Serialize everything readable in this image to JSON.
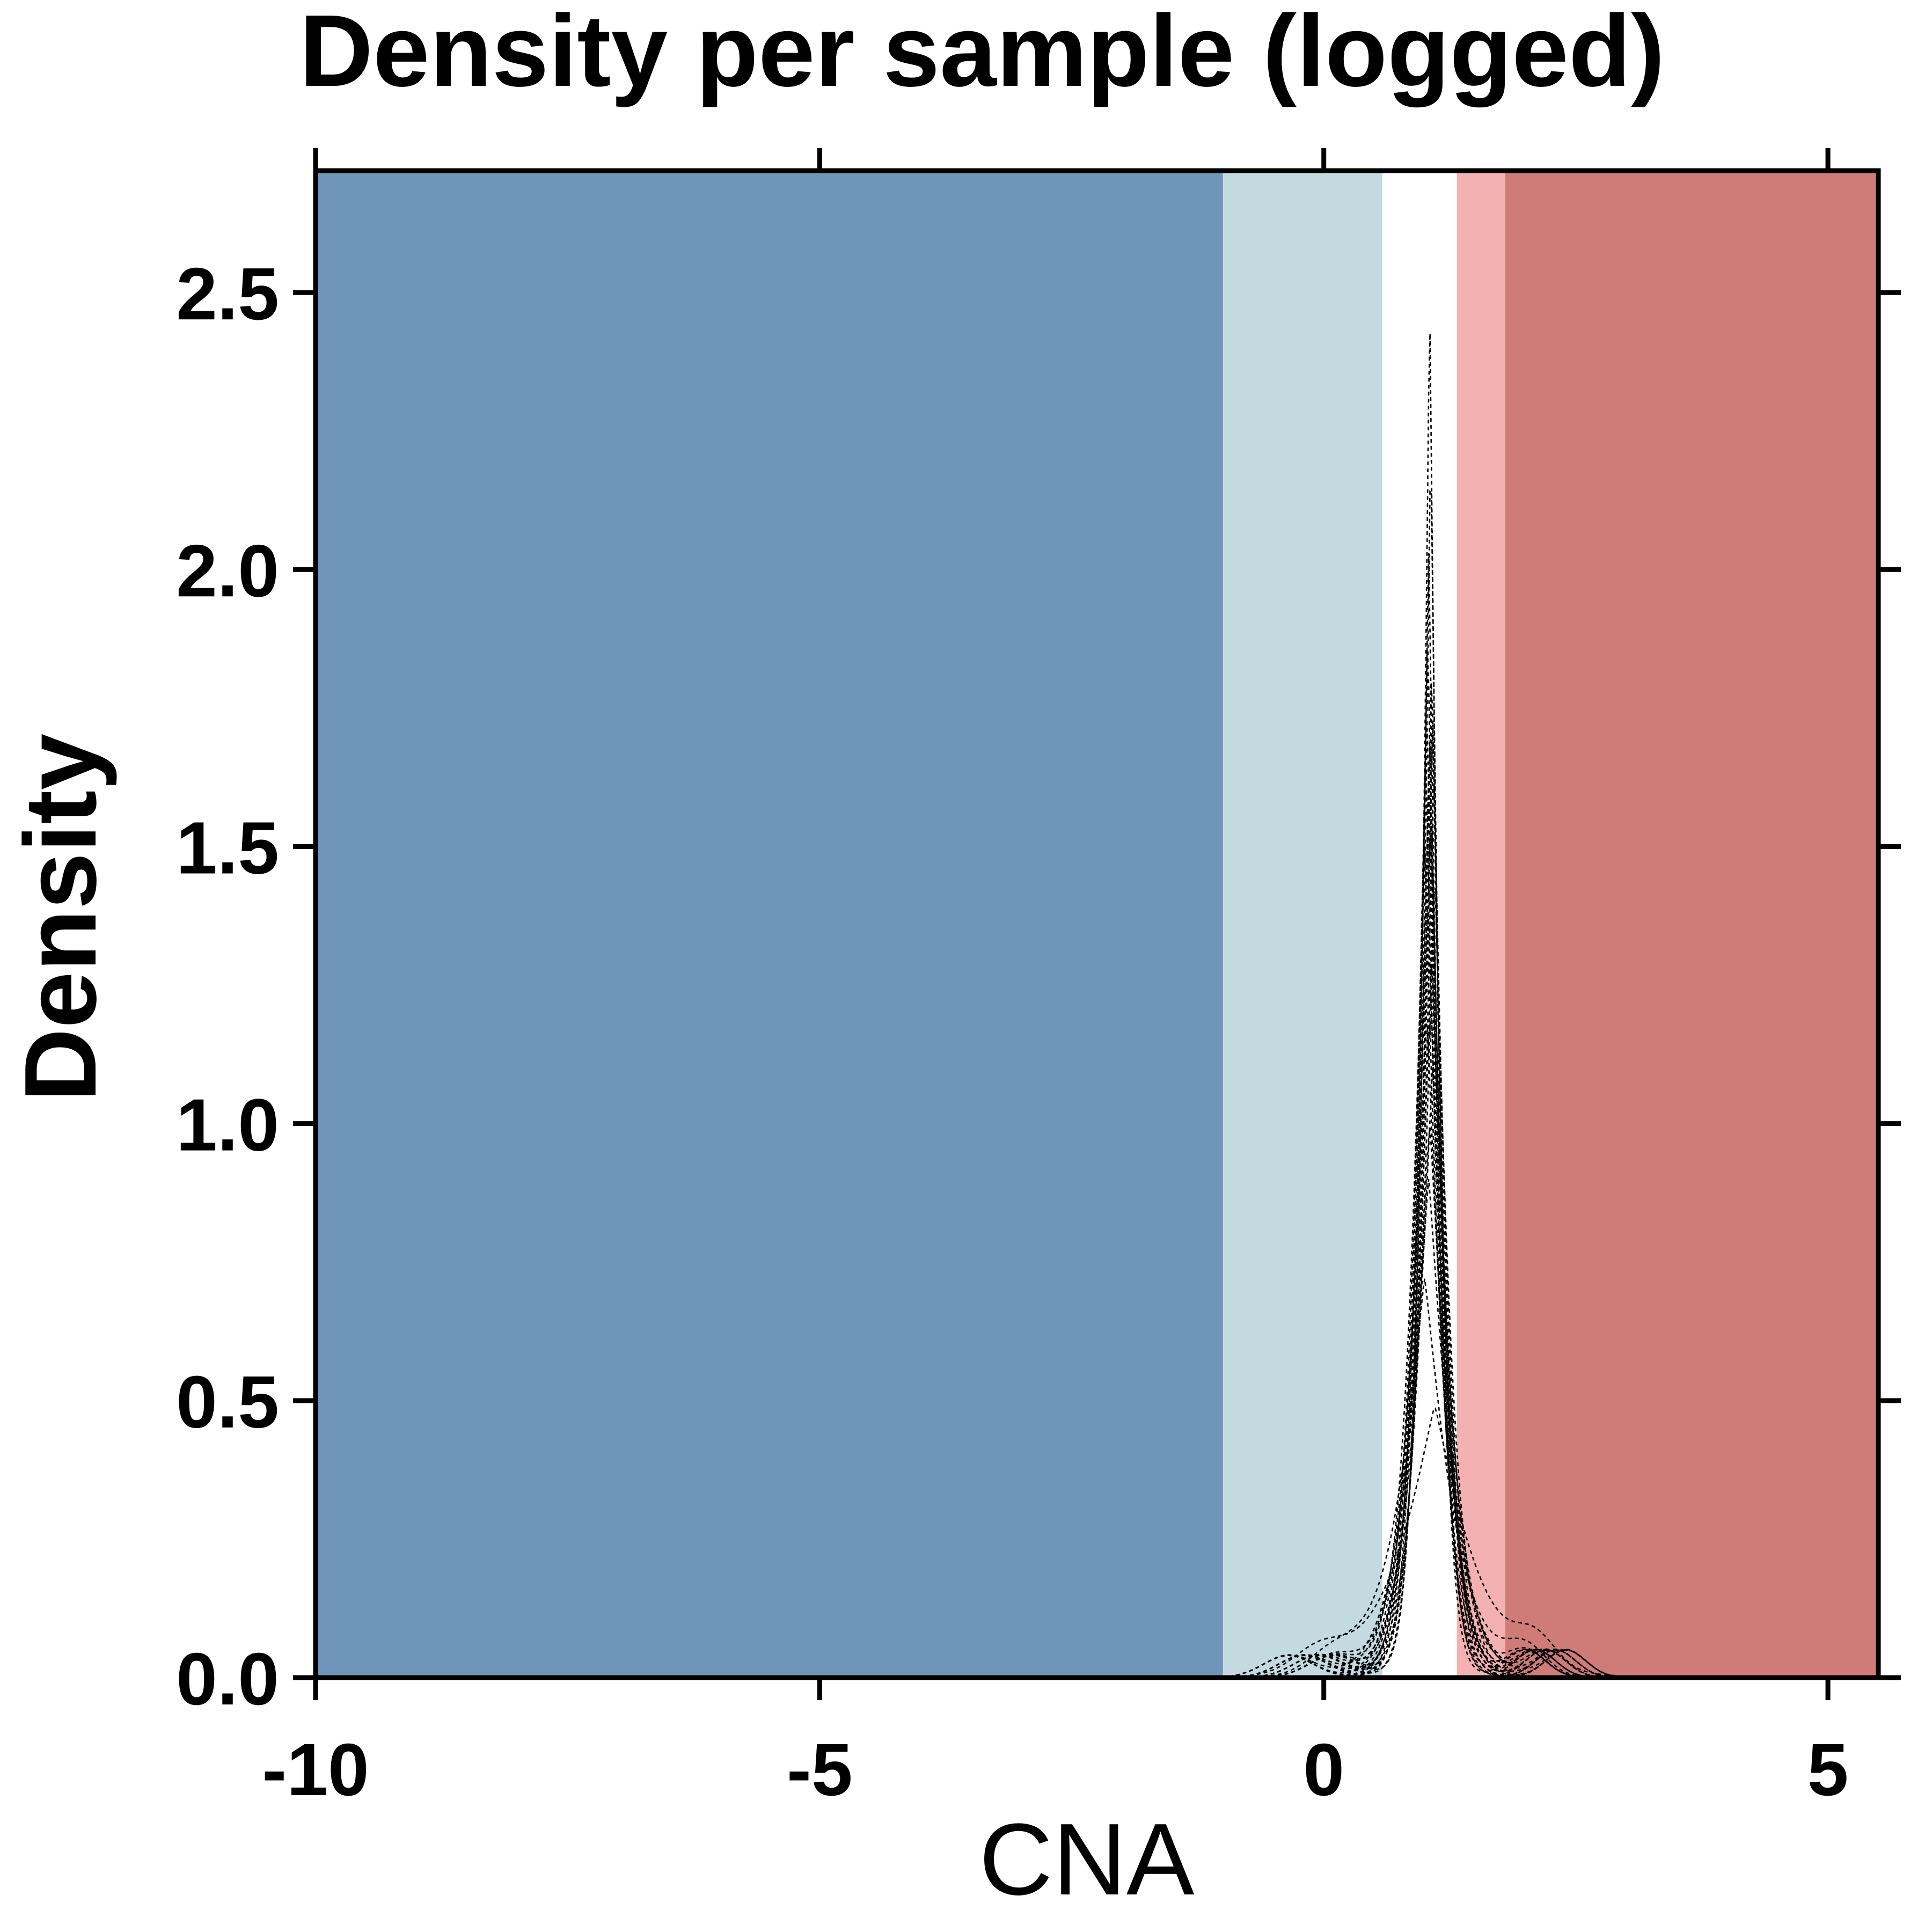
{
  "chart_data": {
    "type": "line",
    "title": "Density per sample (logged)",
    "xlabel": "CNA",
    "ylabel": "Density",
    "xlim": [
      -10,
      5.5
    ],
    "ylim": [
      0,
      2.72
    ],
    "x_ticks": [
      -10,
      -5,
      0,
      5
    ],
    "x_tick_labels": [
      "-10",
      "-5",
      "0",
      "5"
    ],
    "y_ticks": [
      0,
      0.5,
      1,
      1.5,
      2,
      2.5
    ],
    "y_tick_labels": [
      "0.0",
      "0.5",
      "1.0",
      "1.5",
      "2.0",
      "2.5"
    ],
    "grid": false,
    "legend": "none",
    "background_bands": [
      {
        "from": -10,
        "to": -1.0,
        "color": "#6f95b8"
      },
      {
        "from": -1.0,
        "to": 0.58,
        "color": "#c3dae1"
      },
      {
        "from": 0.58,
        "to": 1.32,
        "color": "#ffffff"
      },
      {
        "from": 1.32,
        "to": 1.8,
        "color": "#f4b1b1"
      },
      {
        "from": 1.8,
        "to": 5.5,
        "color": "#cf7b78"
      }
    ],
    "line_style": "dotted",
    "line_color": "#000000",
    "series": [
      {
        "peak_x": 1.05,
        "peak_y": 2.47,
        "width": 0.11
      },
      {
        "peak_x": 1.06,
        "peak_y": 2.22,
        "width": 0.12
      },
      {
        "peak_x": 1.04,
        "peak_y": 2.03,
        "width": 0.13
      },
      {
        "peak_x": 1.03,
        "peak_y": 1.88,
        "width": 0.14
      },
      {
        "peak_x": 1.07,
        "peak_y": 1.82,
        "width": 0.14
      },
      {
        "peak_x": 1.02,
        "peak_y": 1.76,
        "width": 0.15
      },
      {
        "peak_x": 1.08,
        "peak_y": 1.72,
        "width": 0.15
      },
      {
        "peak_x": 1.05,
        "peak_y": 1.7,
        "width": 0.16
      },
      {
        "peak_x": 1.01,
        "peak_y": 1.66,
        "width": 0.16
      },
      {
        "peak_x": 1.09,
        "peak_y": 1.63,
        "width": 0.16
      },
      {
        "peak_x": 1.04,
        "peak_y": 1.6,
        "width": 0.17
      },
      {
        "peak_x": 1.06,
        "peak_y": 1.55,
        "width": 0.17
      },
      {
        "peak_x": 1.0,
        "peak_y": 1.5,
        "width": 0.18
      },
      {
        "peak_x": 1.1,
        "peak_y": 1.45,
        "width": 0.18
      },
      {
        "peak_x": 1.03,
        "peak_y": 1.4,
        "width": 0.19
      },
      {
        "peak_x": 1.07,
        "peak_y": 1.3,
        "width": 0.2
      },
      {
        "peak_x": 1.02,
        "peak_y": 1.2,
        "width": 0.21
      },
      {
        "peak_x": 1.08,
        "peak_y": 1.1,
        "width": 0.22
      },
      {
        "peak_x": 1.05,
        "peak_y": 1.0,
        "width": 0.24
      },
      {
        "peak_x": 1.04,
        "peak_y": 0.9,
        "width": 0.26
      },
      {
        "peak_x": 1.0,
        "peak_y": 0.72,
        "width": 0.32
      },
      {
        "peak_x": 1.1,
        "peak_y": 0.49,
        "width": 0.45
      }
    ]
  }
}
